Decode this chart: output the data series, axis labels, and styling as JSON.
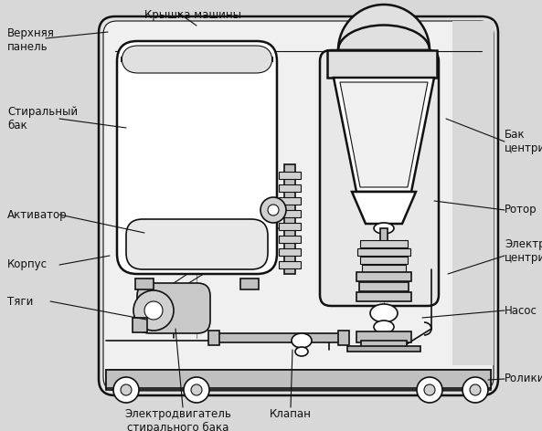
{
  "bg_color": "#d8d8d8",
  "line_color": "#111111",
  "fill_white": "#ffffff",
  "fill_light": "#f0f0f0",
  "fill_gray": "#c8c8c8",
  "labels": {
    "verhnyaya_panel": "Верхняя\nпанель",
    "kryshka": "Крышка машины",
    "stiralny_bak": "Стиральный\nбак",
    "aktivator": "Активатор",
    "korpus": "Корпус",
    "tyagi": "Тяги",
    "elektrodvigatel_stir": "Электродвигатель\nстирального бака",
    "klapan": "Клапан",
    "bak_centrifugi": "Бак\nцентрифуги",
    "rotor": "Ротор",
    "elektrodvigatel_centr": "Электродвигатель\nцентрифуги",
    "nasos": "Насос",
    "roliki": "Ролики"
  },
  "figsize": [
    5.93,
    4.72
  ],
  "dpi": 100
}
